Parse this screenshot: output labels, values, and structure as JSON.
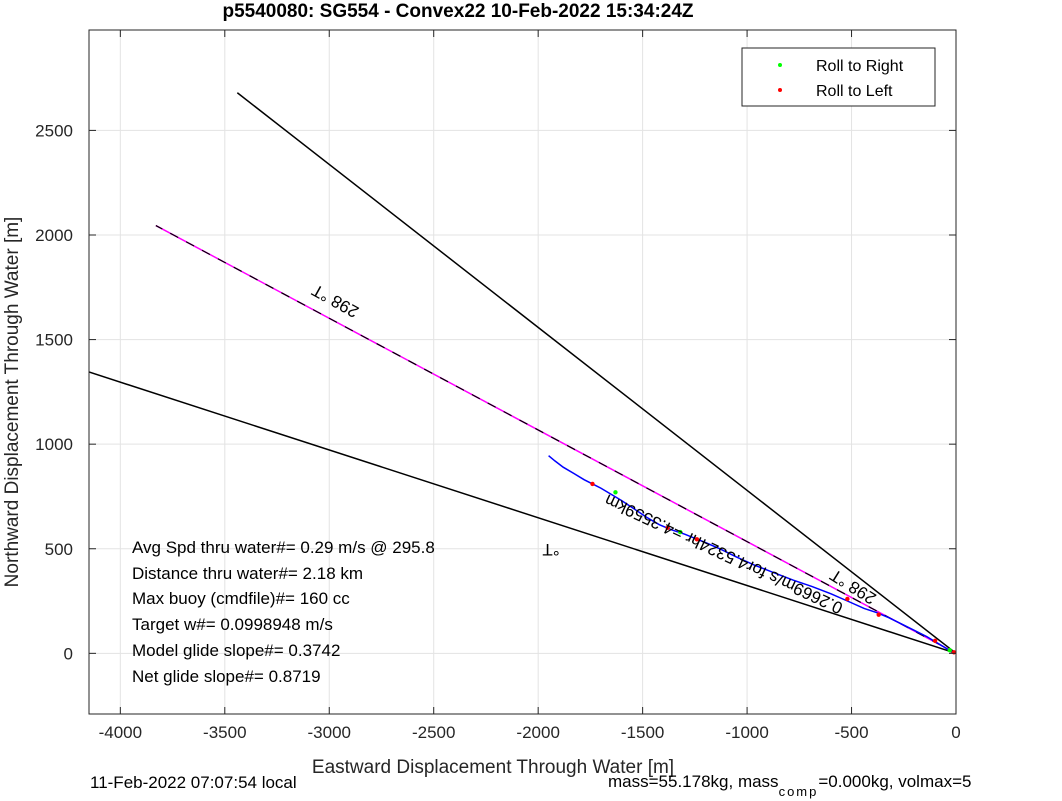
{
  "title": "p5540080: SG554 - Convex22 10-Feb-2022 15:34:24Z",
  "chart_data": {
    "type": "line",
    "title": "p5540080: SG554 - Convex22 10-Feb-2022 15:34:24Z",
    "xlabel": "Eastward Displacement Through Water [m]",
    "ylabel": "Northward Displacement Through Water [m]",
    "xlim": [
      -4150,
      0
    ],
    "ylim": [
      -290,
      2980
    ],
    "xticks": [
      -4000,
      -3500,
      -3000,
      -2500,
      -2000,
      -1500,
      -1000,
      -500,
      0
    ],
    "yticks": [
      0,
      500,
      1000,
      1500,
      2000,
      2500
    ],
    "grid": true,
    "legend_position": "top-right",
    "legend": [
      {
        "label": "Roll to Right",
        "color": "#00ff00"
      },
      {
        "label": "Roll to Left",
        "color": "#ff0000"
      }
    ],
    "lines": [
      {
        "style": "black",
        "x": [
          0,
          -3440
        ],
        "y": [
          0,
          2680
        ]
      },
      {
        "style": "black",
        "x": [
          0,
          -4150
        ],
        "y": [
          0,
          1345
        ]
      },
      {
        "style": "magenta",
        "x": [
          0,
          -3830
        ],
        "y": [
          0,
          2045
        ]
      },
      {
        "style": "dashed-black",
        "x": [
          0,
          -3830
        ],
        "y": [
          0,
          2045
        ]
      }
    ],
    "track": {
      "color": "#0000ff",
      "x": [
        0,
        -40,
        -90,
        -140,
        -200,
        -260,
        -320,
        -380,
        -440,
        -520,
        -600,
        -690,
        -780,
        -870,
        -960,
        -1050,
        -1130,
        -1200,
        -1250,
        -1300,
        -1360,
        -1420,
        -1480,
        -1540,
        -1600,
        -1650,
        -1700,
        -1740,
        -1780,
        -1830,
        -1880,
        -1920,
        -1950
      ],
      "y": [
        0,
        20,
        50,
        80,
        110,
        140,
        170,
        195,
        215,
        250,
        285,
        320,
        350,
        385,
        420,
        460,
        500,
        530,
        550,
        570,
        590,
        615,
        650,
        690,
        730,
        760,
        790,
        810,
        830,
        860,
        890,
        920,
        945
      ]
    },
    "roll_right_points": {
      "x": [
        -1630,
        -1320,
        -30
      ],
      "y": [
        770,
        580,
        15
      ]
    },
    "roll_left_points": {
      "x": [
        -1740,
        -1380,
        -1240,
        -520,
        -370,
        -100,
        -10
      ],
      "y": [
        810,
        600,
        545,
        260,
        185,
        60,
        5
      ]
    },
    "annotations": {
      "heading1": "298 °T",
      "heading2": "298 °T",
      "heading3": "°T",
      "speed_label": "0.2669m/s for4.5324hr =4.3559km"
    }
  },
  "stats": [
    "Avg Spd thru water#=  0.29 m/s @ 295.8",
    "Distance thru water#=  2.18 km",
    "Max buoy (cmdfile)#= 160 cc",
    "Target w#= 0.0998948 m/s",
    "Model glide slope#= 0.3742",
    "Net glide slope#= 0.8719"
  ],
  "footer": {
    "local_time": "11-Feb-2022 07:07:54 local",
    "mass_prefix": "mass=55.178kg, mass",
    "mass_sub": "comp",
    "mass_suffix": "=0.000kg, volmax=5"
  }
}
